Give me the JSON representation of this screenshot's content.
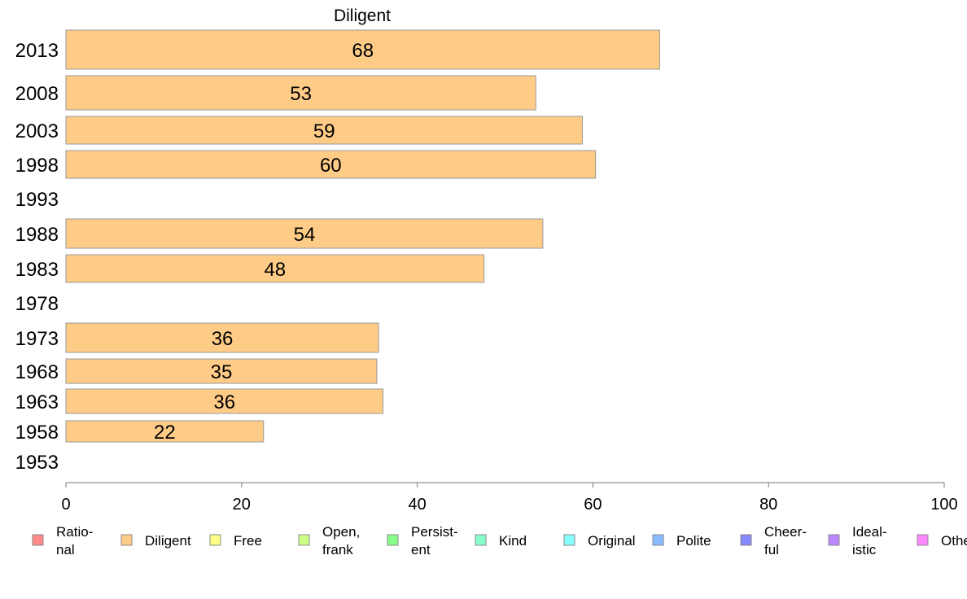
{
  "chart_data": {
    "type": "bar",
    "orientation": "horizontal",
    "title": "Diligent",
    "categories": [
      "2013",
      "2008",
      "2003",
      "1998",
      "1993",
      "1988",
      "1983",
      "1978",
      "1973",
      "1968",
      "1963",
      "1958",
      "1953"
    ],
    "series": [
      {
        "name": "Diligent",
        "values": [
          68,
          53,
          59,
          60,
          null,
          54,
          48,
          null,
          36,
          35,
          36,
          22,
          null
        ]
      }
    ],
    "display_values": [
      67.6,
      53.5,
      58.8,
      60.3,
      null,
      54.3,
      47.6,
      null,
      35.6,
      35.4,
      36.1,
      22.5,
      null
    ],
    "xlim": [
      0,
      100
    ],
    "xticks": [
      "0",
      "20",
      "40",
      "60",
      "80",
      "100"
    ],
    "bar_color": "#FFCC88",
    "legend": {
      "placement": "bottom",
      "items": [
        {
          "label": [
            "Ratio-",
            "nal"
          ],
          "color": "#FF8888"
        },
        {
          "label": [
            "Diligent"
          ],
          "color": "#FFCC88"
        },
        {
          "label": [
            "Free"
          ],
          "color": "#FFFF88"
        },
        {
          "label": [
            "Open,",
            "frank"
          ],
          "color": "#CCFF88"
        },
        {
          "label": [
            "Persist-",
            "ent"
          ],
          "color": "#88FF88"
        },
        {
          "label": [
            "Kind"
          ],
          "color": "#88FFCC"
        },
        {
          "label": [
            "Original"
          ],
          "color": "#88FFFF"
        },
        {
          "label": [
            "Polite"
          ],
          "color": "#88BBFF"
        },
        {
          "label": [
            "Cheer-",
            "ful"
          ],
          "color": "#8888FF"
        },
        {
          "label": [
            "Ideal-",
            "istic"
          ],
          "color": "#BB88FF"
        },
        {
          "label": [
            "Other"
          ],
          "color": "#FF88FF"
        }
      ]
    }
  }
}
